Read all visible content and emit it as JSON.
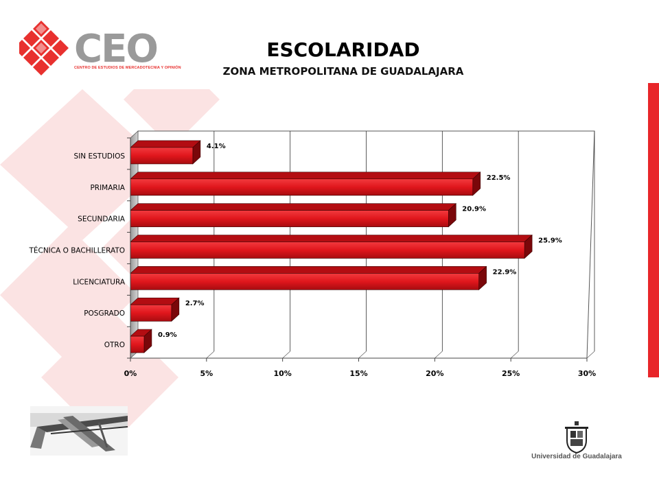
{
  "header": {
    "title": "ESCOLARIDAD",
    "subtitle": "ZONA METROPOLITANA DE GUADALAJARA"
  },
  "logo": {
    "name": "CEO",
    "tagline": "CENTRO DE ESTUDIOS DE MERCADOTECNIA Y OPINIÓN"
  },
  "footer": {
    "institution": "Universidad de Guadalajara"
  },
  "colors": {
    "accent": "#e8262a",
    "bar_front": "#e0161c",
    "bar_top": "#b30d12",
    "bar_side": "#7a070a"
  },
  "chart_data": {
    "type": "bar",
    "orientation": "horizontal",
    "categories": [
      "SIN ESTUDIOS",
      "PRIMARIA",
      "SECUNDARIA",
      "TÉCNICA O BACHILLERATO",
      "LICENCIATURA",
      "POSGRADO",
      "OTRO"
    ],
    "values": [
      4.1,
      22.5,
      20.9,
      25.9,
      22.9,
      2.7,
      0.9
    ],
    "data_labels": [
      "4.1%",
      "22.5%",
      "20.9%",
      "25.9%",
      "22.9%",
      "2.7%",
      "0.9%"
    ],
    "xlim": [
      0,
      30
    ],
    "xticks": [
      0,
      5,
      10,
      15,
      20,
      25,
      30
    ],
    "xtick_labels": [
      "0%",
      "5%",
      "10%",
      "15%",
      "20%",
      "25%",
      "30%"
    ],
    "grid": true,
    "style": "3d"
  }
}
